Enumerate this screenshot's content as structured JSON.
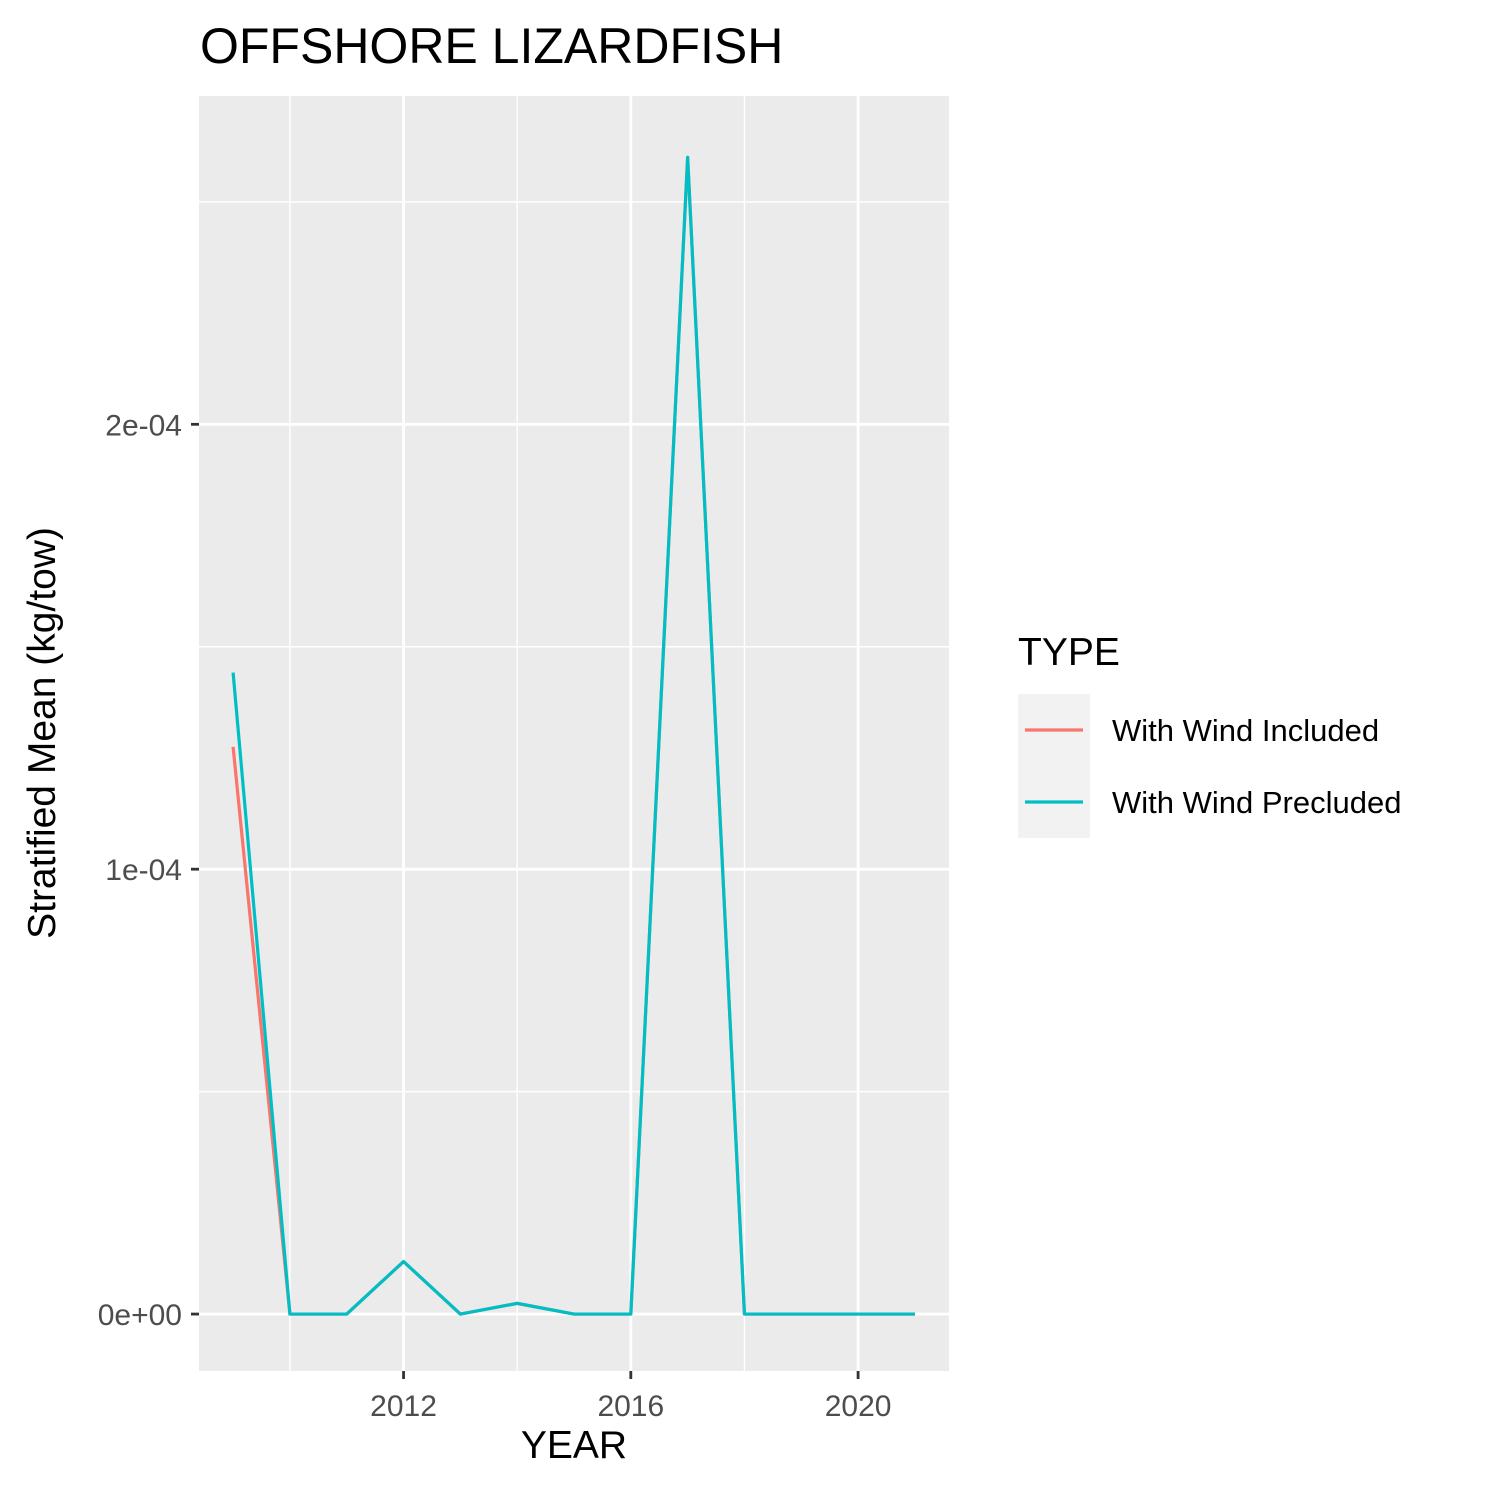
{
  "chart_data": {
    "type": "line",
    "title": "OFFSHORE LIZARDFISH",
    "xlabel": "YEAR",
    "ylabel": "Stratified Mean (kg/tow)",
    "x": [
      2009,
      2010,
      2011,
      2012,
      2013,
      2014,
      2015,
      2016,
      2017,
      2018,
      2019,
      2020,
      2021
    ],
    "xlim": [
      2008.4,
      2021.6
    ],
    "ylim": [
      -1.28e-05,
      0.0002738
    ],
    "x_ticks": [
      2012,
      2016,
      2020
    ],
    "x_tick_labels": [
      "2012",
      "2016",
      "2020"
    ],
    "x_minor_ticks": [
      2010,
      2014,
      2018
    ],
    "y_ticks": [
      0,
      0.0001,
      0.0002
    ],
    "y_tick_labels": [
      "0e+00",
      "1e-04",
      "2e-04"
    ],
    "y_minor_ticks": [
      5e-05,
      0.00015,
      0.00025
    ],
    "grid": true,
    "legend": {
      "title": "TYPE",
      "position": "right"
    },
    "series": [
      {
        "name": "With Wind Included",
        "color": "#F8766D",
        "values": [
          0.0001275,
          0,
          0,
          1.18e-05,
          0,
          2.4e-06,
          0,
          0,
          0.00026,
          0,
          0,
          0,
          0
        ]
      },
      {
        "name": "With Wind Precluded",
        "color": "#00BFC4",
        "values": [
          0.0001442,
          0,
          0,
          1.18e-05,
          0,
          2.4e-06,
          0,
          0,
          0.00026,
          0,
          0,
          0,
          0
        ]
      }
    ]
  }
}
